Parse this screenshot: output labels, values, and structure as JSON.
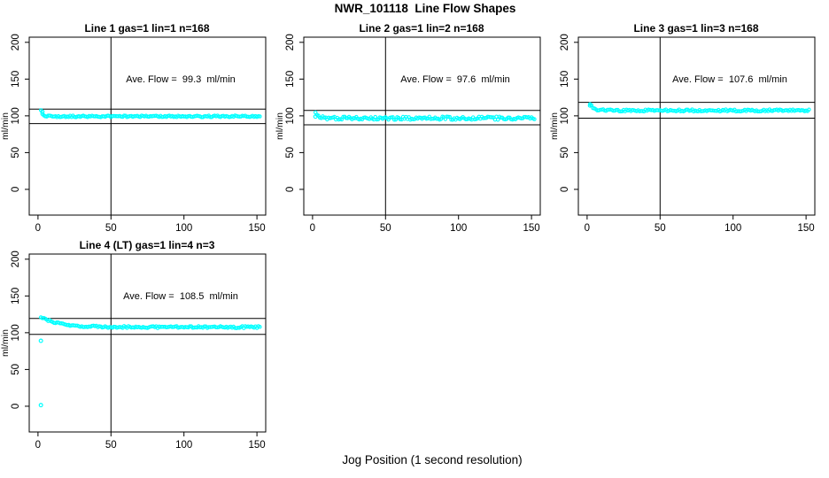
{
  "title": "NWR_101118  Line Flow Shapes",
  "chart_data": {
    "type": "scatter",
    "title": "NWR_101118  Line Flow Shapes",
    "xlabel": "Jog Position (1 second resolution)",
    "ylabel": "ml/min",
    "x_ticks": [
      0,
      50,
      100,
      150
    ],
    "y_ticks": [
      0,
      50,
      100,
      150,
      200
    ],
    "xlim": [
      -6,
      156
    ],
    "ylim": [
      -35,
      207
    ],
    "grid": false,
    "legend": "none",
    "marker": "open-circle",
    "marker_color": "#00FFFF",
    "axis_color": "#000000",
    "vline_x": 50,
    "panels": [
      {
        "title": "Line 1 gas=1 lin=1 n=168",
        "annotation": "Ave. Flow =  99.3  ml/min",
        "ave_flow": 99.3,
        "n": 168,
        "hlines": [
          109.2,
          89.4
        ],
        "series": {
          "x_start": 2,
          "x_end": 152,
          "step": 1,
          "start_value": 107,
          "settle_value": 99.3,
          "decay_tau": 1.5,
          "noise": 1.1,
          "seed": 11
        },
        "outliers": [
          [
            3,
            105.5
          ]
        ]
      },
      {
        "title": "Line 2 gas=1 lin=2 n=168",
        "annotation": "Ave. Flow =  97.6  ml/min",
        "ave_flow": 97.6,
        "n": 168,
        "hlines": [
          107.4,
          87.8
        ],
        "series": {
          "x_start": 2,
          "x_end": 152,
          "step": 1,
          "start_value": 104,
          "settle_value": 96.8,
          "decay_tau": 2,
          "noise": 2.1,
          "seed": 22
        },
        "outliers": [
          [
            2,
            99
          ]
        ]
      },
      {
        "title": "Line 3 gas=1 lin=3 n=168",
        "annotation": "Ave. Flow =  107.6  ml/min",
        "ave_flow": 107.6,
        "n": 168,
        "hlines": [
          118.4,
          96.8
        ],
        "series": {
          "x_start": 2,
          "x_end": 152,
          "step": 1,
          "start_value": 116,
          "settle_value": 107.4,
          "decay_tau": 2.5,
          "noise": 1.4,
          "seed": 33
        },
        "outliers": [
          [
            2,
            114
          ]
        ]
      },
      {
        "title": "Line 4 (LT) gas=1 lin=4 n=3",
        "annotation": "Ave. Flow =  108.5  ml/min",
        "ave_flow": 108.5,
        "n": 3,
        "hlines": [
          119.4,
          97.7
        ],
        "series": {
          "x_start": 2,
          "x_end": 152,
          "step": 1,
          "start_value": 121.5,
          "settle_value": 107.6,
          "decay_tau": 12,
          "noise": 1.4,
          "seed": 44
        },
        "outliers": [
          [
            2,
            89
          ],
          [
            2,
            1.5
          ]
        ]
      }
    ]
  }
}
